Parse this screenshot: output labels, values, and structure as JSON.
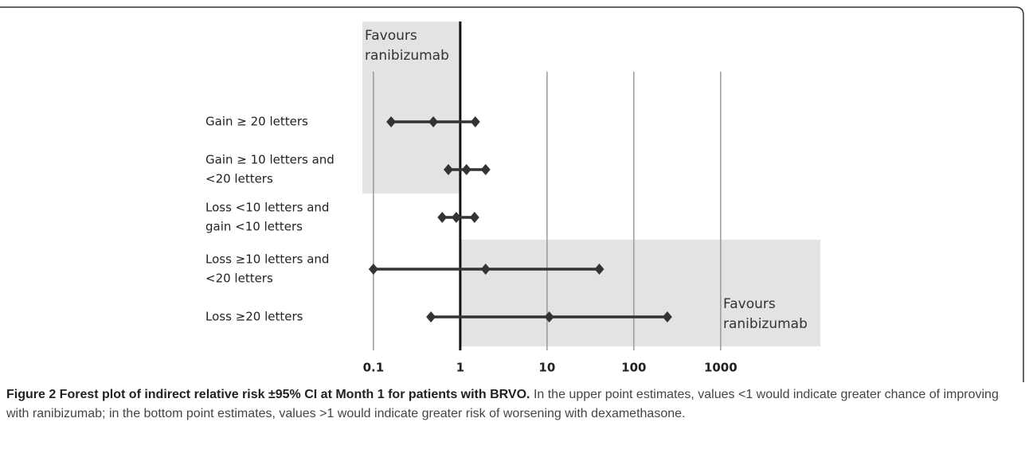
{
  "chart_data": {
    "type": "forest",
    "categories": [
      [
        "Gain ≥ 20 letters"
      ],
      [
        "Gain ≥ 10 letters  and",
        "<20 letters"
      ],
      [
        "Loss <10 letters  and",
        "gain <10 letters"
      ],
      [
        "Loss ≥10 letters  and",
        "<20 letters"
      ],
      [
        "Loss ≥20 letters"
      ]
    ],
    "lower": [
      0.16,
      0.73,
      0.62,
      0.1,
      0.46
    ],
    "values": [
      0.49,
      1.18,
      0.9,
      1.96,
      10.6
    ],
    "upper": [
      1.49,
      1.96,
      1.46,
      40,
      243
    ],
    "color": "#333333",
    "log_x": true,
    "xlim": [
      0.07,
      15000
    ],
    "xticks": [
      0.1,
      1,
      10,
      100,
      1000
    ],
    "grid": true,
    "annotations": [
      [
        "Favours",
        "ranibizumab"
      ],
      [
        "Favours",
        "ranibizumab"
      ]
    ]
  },
  "caption": {
    "title": "Figure 2 Forest plot of indirect relative risk ±95% CI at Month 1 for patients with BRVO.",
    "text": "In the upper point estimates, values <1 would indicate greater chance of improving with ranibizumab; in the bottom point estimates, values >1 would indicate greater risk of worsening with dexamethasone."
  }
}
